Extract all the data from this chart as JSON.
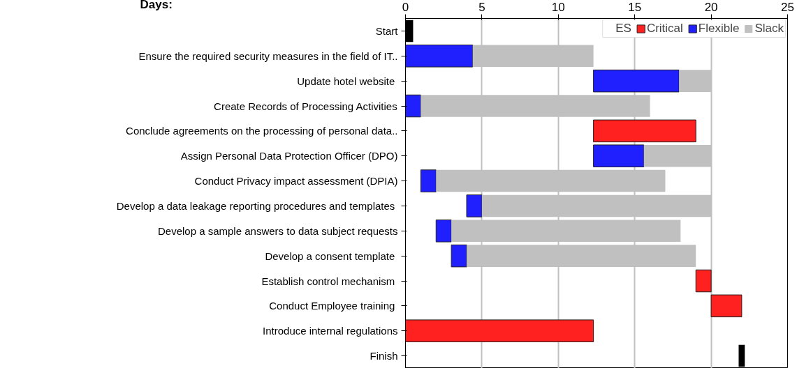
{
  "chart_data": {
    "type": "bar",
    "orientation": "horizontal",
    "xlabel": "Days:",
    "legend_title": "ES",
    "categories": [
      "Start",
      "Ensure the required security measures in the field of IT..",
      "Update hotel website ",
      "Create Records of Processing Activities",
      "Conclude agreements on the processing of personal data..",
      "Assign Personal Data Protection Officer (DPO)",
      "Conduct Privacy impact assessment (DPIA)",
      "Develop a data leakage reporting procedures and templates ",
      "Develop a sample answers to data subject requests",
      "Develop a consent template ",
      "Establish control mechanism ",
      "Conduct Employee training ",
      "Introduce internal regulations",
      "Finish"
    ],
    "series": [
      {
        "name": "Critical",
        "color": "#ff2020",
        "base": [
          null,
          null,
          null,
          null,
          12.3,
          null,
          null,
          null,
          null,
          null,
          19,
          20,
          0,
          null
        ],
        "values": [
          null,
          null,
          null,
          null,
          6.7,
          null,
          null,
          null,
          null,
          null,
          1,
          2,
          12.3,
          null
        ]
      },
      {
        "name": "Flexible",
        "color": "#2020ff",
        "base": [
          null,
          0,
          12.3,
          0,
          null,
          12.3,
          1,
          4,
          2,
          3,
          null,
          null,
          null,
          null
        ],
        "values": [
          null,
          4.4,
          5.6,
          1,
          null,
          3.3,
          1,
          1,
          1,
          1,
          null,
          null,
          null,
          null
        ]
      },
      {
        "color": "#000000",
        "base": [
          0,
          null,
          null,
          null,
          null,
          null,
          null,
          null,
          null,
          null,
          null,
          null,
          null,
          21.8
        ],
        "values": [
          0.5,
          null,
          null,
          null,
          null,
          null,
          null,
          null,
          null,
          null,
          null,
          null,
          null,
          0.4
        ]
      },
      {
        "name": "Slack",
        "color": "#c0c0c0",
        "base": [
          null,
          4.4,
          17.9,
          1,
          null,
          15.6,
          2,
          5,
          3,
          4,
          null,
          null,
          null,
          null
        ],
        "values": [
          null,
          7.9,
          2.1,
          15,
          null,
          4.4,
          15,
          15,
          15,
          15,
          null,
          null,
          null,
          null
        ]
      }
    ],
    "xlim": [
      0,
      25
    ],
    "xticks": [
      0,
      5,
      10,
      15,
      20,
      25
    ],
    "grid": "x",
    "legend": "top right"
  }
}
